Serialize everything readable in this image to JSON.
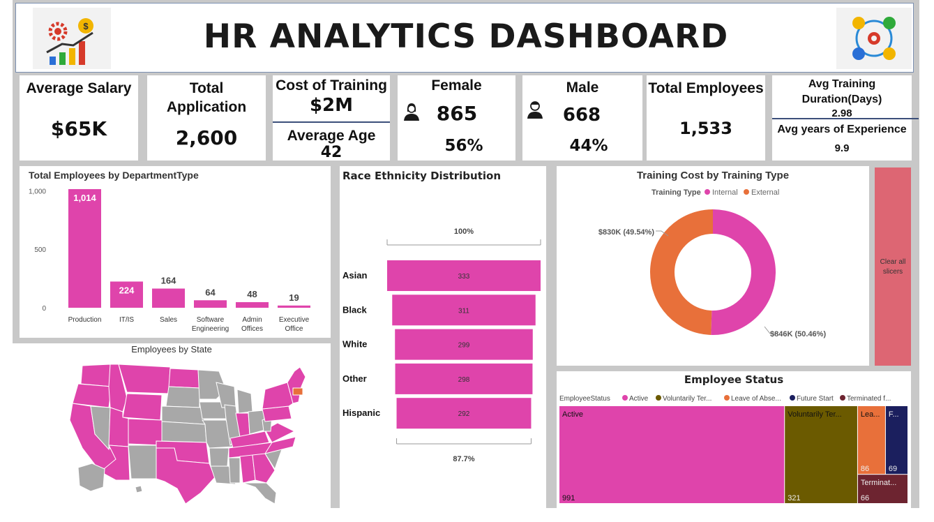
{
  "header": {
    "title": "HR ANALYTICS DASHBOARD",
    "logo_left_icon": "analytics-gears-chart-icon",
    "logo_right_icon": "team-network-gear-icon"
  },
  "kpis": {
    "avg_salary": {
      "label": "Average Salary",
      "value": "$65K"
    },
    "total_application": {
      "label_line1": "Total",
      "label_line2": "Application",
      "value": "2,600"
    },
    "cost_of_training": {
      "label": "Cost of Training",
      "value": "$2M"
    },
    "average_age": {
      "label": "Average Age",
      "value": "42"
    },
    "female": {
      "label": "Female",
      "count": "865",
      "pct": "56%",
      "icon": "female-person-icon"
    },
    "male": {
      "label": "Male",
      "count": "668",
      "pct": "44%",
      "icon": "male-person-icon"
    },
    "total_employees": {
      "label": "Total Employees",
      "value": "1,533"
    },
    "avg_training": {
      "label_line1": "Avg Training",
      "label_line2": "Duration(Days)",
      "value": "2.98"
    },
    "avg_experience": {
      "label": "Avg years of Experience",
      "value": "9.9"
    }
  },
  "colors": {
    "magenta": "#df44ab",
    "orange": "#e8703a",
    "olive": "#6b5a00",
    "navy": "#1b1f5e",
    "maroon": "#6d2430",
    "gray_state": "#a8a8a8",
    "slicer_button": "#dd6673"
  },
  "clear_slicers": {
    "label_line1": "Clear all",
    "label_line2": "slicers"
  },
  "chart_data": [
    {
      "type": "bar",
      "title": "Total Employees by DepartmentType",
      "categories": [
        "Production",
        "IT/IS",
        "Sales",
        "Software Engineering",
        "Admin Offices",
        "Executive Office"
      ],
      "category_lines": [
        [
          "Production"
        ],
        [
          "IT/IS"
        ],
        [
          "Sales"
        ],
        [
          "Software",
          "Engineering"
        ],
        [
          "Admin",
          "Offices"
        ],
        [
          "Executive",
          "Office"
        ]
      ],
      "values": [
        1014,
        224,
        164,
        64,
        48,
        19
      ],
      "value_labels": [
        "1,014",
        "224",
        "164",
        "64",
        "48",
        "19"
      ],
      "yticks": [
        0,
        500,
        1000
      ],
      "ytick_labels": [
        "0",
        "500",
        "1,000"
      ],
      "ylim": [
        0,
        1014
      ],
      "color": "#df44ab"
    },
    {
      "type": "bar",
      "title": "Race Ethnicity Distribution",
      "categories": [
        "Asian",
        "Black",
        "White",
        "Other",
        "Hispanic"
      ],
      "values": [
        333,
        311,
        299,
        298,
        292
      ],
      "top_label": "100%",
      "bottom_label": "87.7%",
      "color": "#df44ab"
    },
    {
      "type": "pie",
      "title": "Training Cost by Training Type",
      "legend_title": "Training Type",
      "series": [
        {
          "name": "Internal",
          "value": 846,
          "label": "$846K (50.46%)",
          "color": "#df44ab"
        },
        {
          "name": "External",
          "value": 830,
          "label": "$830K (49.54%)",
          "color": "#e8703a"
        }
      ]
    },
    {
      "type": "heatmap",
      "title": "Employee Status",
      "legend_title": "EmployeeStatus",
      "legend": [
        "Active",
        "Voluntarily Ter...",
        "Leave of Abse...",
        "Future Start",
        "Terminated f..."
      ],
      "series": [
        {
          "name": "Active",
          "label": "Active",
          "value": 991,
          "color": "#df44ab"
        },
        {
          "name": "Voluntarily Terminated",
          "label": "Voluntarily Ter...",
          "value": 321,
          "color": "#6b5a00"
        },
        {
          "name": "Leave of Absence",
          "label": "Lea...",
          "value": 86,
          "color": "#e8703a"
        },
        {
          "name": "Future Start",
          "label": "F...",
          "value": 69,
          "color": "#1b1f5e"
        },
        {
          "name": "Terminated for Cause",
          "label": "Terminat...",
          "value": 66,
          "color": "#6d2430"
        }
      ]
    }
  ],
  "map": {
    "title": "Employees by State",
    "highlight_color": "#df44ab",
    "other_color": "#a8a8a8",
    "accent_state_color": "#e8703a"
  }
}
